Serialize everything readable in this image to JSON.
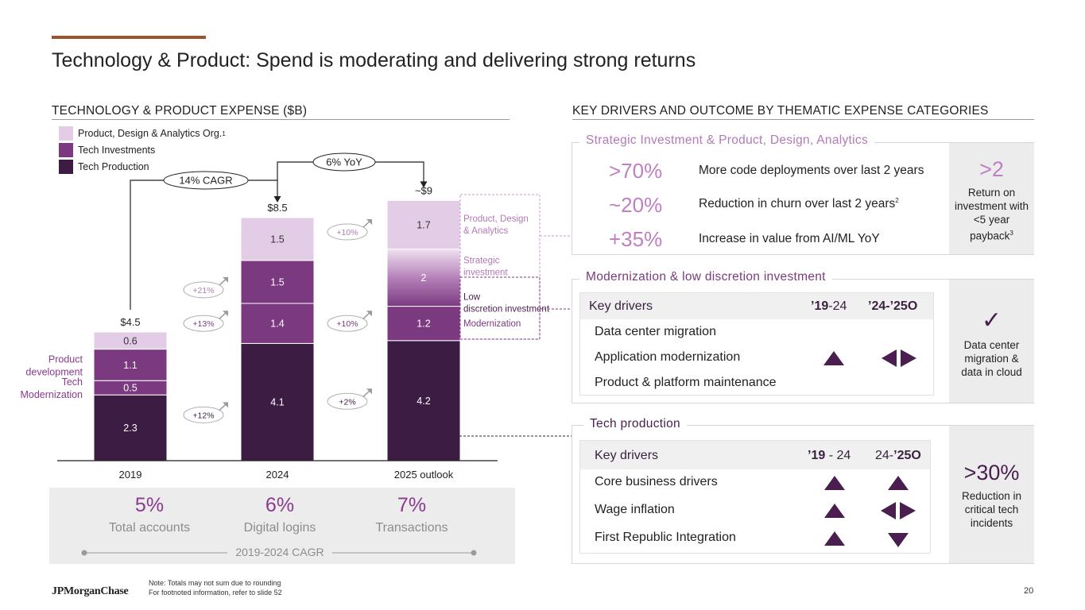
{
  "title": "Technology & Product: Spend is moderating and delivering strong returns",
  "left_section": {
    "heading": "TECHNOLOGY & PRODUCT EXPENSE ($B)",
    "legend": [
      {
        "label": "Product, Design & Analytics Org.",
        "sup": "1",
        "color": "#e3cde6"
      },
      {
        "label": "Tech Investments",
        "sup": "",
        "color": "#7b3a80"
      },
      {
        "label": "Tech Production",
        "sup": "",
        "color": "#3d1c44"
      }
    ]
  },
  "chart_data": {
    "type": "bar",
    "stacked": true,
    "title": "TECHNOLOGY & PRODUCT EXPENSE ($B)",
    "categories": [
      "2019",
      "2024",
      "2025 outlook"
    ],
    "totals": [
      "$4.5",
      "$8.5",
      "~$9"
    ],
    "series": [
      {
        "name": "Tech Production",
        "values": [
          2.3,
          4.1,
          4.2
        ],
        "color": "#3d1c44"
      },
      {
        "name": "Tech Modernization",
        "values": [
          0.5,
          1.4,
          1.2
        ],
        "color": "#7b3a80"
      },
      {
        "name": "Product development",
        "values": [
          1.1,
          1.5,
          2.0
        ],
        "color": "#7b3a80"
      },
      {
        "name": "Product, Design & Analytics",
        "values": [
          0.6,
          1.5,
          1.7
        ],
        "color": "#e3cde6"
      }
    ],
    "left_labels": [
      {
        "text": "Product development",
        "color": "#8a3a8f"
      },
      {
        "text": "Tech Modernization",
        "color": "#8a3a8f"
      }
    ],
    "growth_2019_2024": [
      {
        "text": "+21%",
        "series": 3,
        "color": "#b27ab6"
      },
      {
        "text": "+13%",
        "series": 2,
        "color": "#7b3a80"
      },
      {
        "text": "+12%",
        "series": 0,
        "color": "#3d1c44"
      }
    ],
    "growth_2024_2025": [
      {
        "text": "+10%",
        "series": 3,
        "color": "#b27ab6"
      },
      {
        "text": "+10%",
        "series": 1,
        "color": "#7b3a80"
      },
      {
        "text": "+2%",
        "series": 0,
        "color": "#3d1c44"
      }
    ],
    "right_labels": [
      {
        "text": "Product, Design & Analytics",
        "series": 3,
        "color": "#b27ab6"
      },
      {
        "text": "Strategic investment",
        "series": 2,
        "color": "#b27ab6"
      },
      {
        "text": "Low discretion investment",
        "series": 1.6,
        "color": "#4a1e4f"
      },
      {
        "text": "Modernization",
        "series": 1,
        "color": "#7b3a80"
      }
    ],
    "callouts": {
      "cagr": "14% CAGR",
      "yoy": "6% YoY"
    },
    "ylim": [
      0,
      10
    ]
  },
  "cagr_panel": {
    "items": [
      {
        "value": "5%",
        "label": "Total accounts"
      },
      {
        "value": "6%",
        "label": "Digital logins"
      },
      {
        "value": "7%",
        "label": "Transactions"
      }
    ],
    "footer": "2019-2024 CAGR"
  },
  "right_section": {
    "heading": "KEY DRIVERS AND OUTCOME BY THEMATIC EXPENSE CATEGORIES",
    "strategic": {
      "title": "Strategic Investment & Product, Design, Analytics",
      "rows": [
        {
          "pct": ">70%",
          "text": "More code deployments over last 2 years",
          "sup": ""
        },
        {
          "pct": "~20%",
          "text": "Reduction in churn over last 2 years",
          "sup": "2"
        },
        {
          "pct": "+35%",
          "text": "Increase in value from AI/ML YoY",
          "sup": ""
        }
      ],
      "outcome_value": ">2",
      "outcome_text": "Return on investment with <5 year payback",
      "outcome_sup": "3"
    },
    "modernization": {
      "title": "Modernization & low discretion investment",
      "header": {
        "label": "Key drivers",
        "col1_bold": "’19",
        "col1_rest": "-24",
        "col2_bold": "’24-’25O",
        "col2_rest": ""
      },
      "rows": [
        {
          "label": "Data center migration",
          "c1": "",
          "c2": ""
        },
        {
          "label": "Application modernization",
          "c1": "up",
          "c2": "flat"
        },
        {
          "label": "Product & platform maintenance",
          "c1": "",
          "c2": ""
        }
      ],
      "outcome_icon": "check-icon",
      "outcome_text": "Data center migration & data in cloud"
    },
    "production": {
      "title": "Tech production",
      "header": {
        "label": "Key drivers",
        "col1_bold": "’19",
        "col1_rest": " - 24",
        "col2_bold": "’25O",
        "col2_rest": "24-"
      },
      "rows": [
        {
          "label": "Core business drivers",
          "c1": "up",
          "c2": "up"
        },
        {
          "label": "Wage inflation",
          "c1": "up",
          "c2": "flat"
        },
        {
          "label": "First Republic Integration",
          "c1": "up",
          "c2": "down"
        }
      ],
      "outcome_value": ">30%",
      "outcome_text": "Reduction in critical tech incidents"
    }
  },
  "footer": {
    "logo": "JPMorganChase",
    "note1": "Note: Totals may not sum due to rounding",
    "note2": "For footnoted information, refer to slide 52",
    "page": "20"
  }
}
